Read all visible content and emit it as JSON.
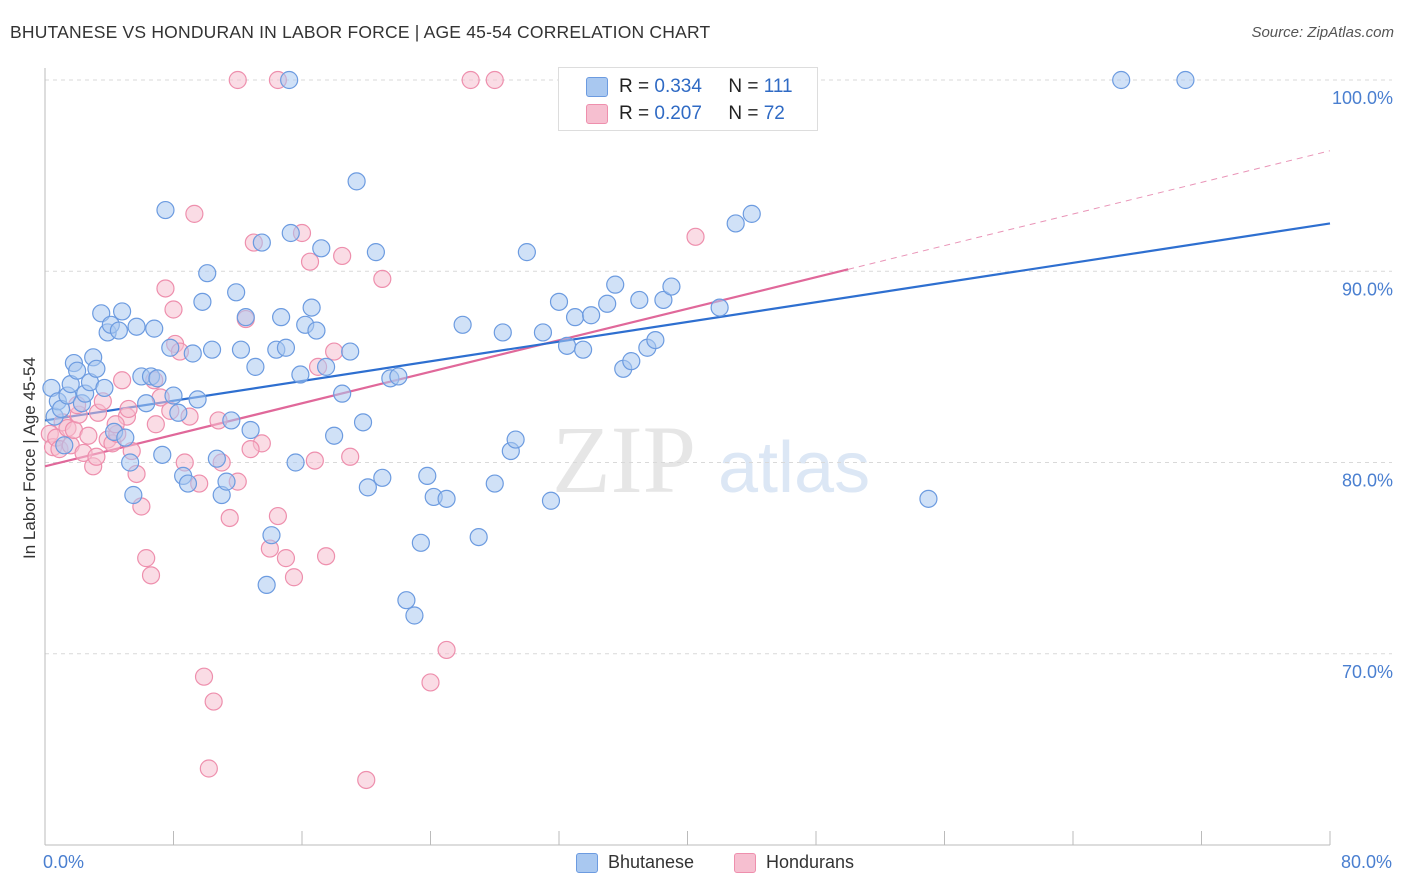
{
  "title": "BHUTANESE VS HONDURAN IN LABOR FORCE | AGE 45-54 CORRELATION CHART",
  "source": "Source: ZipAtlas.com",
  "watermark": {
    "zip": "ZIP",
    "atlas": "atlas"
  },
  "stats": {
    "rows": [
      {
        "r_label": "R =",
        "r_value": "0.334",
        "n_label": "N =",
        "n_value": "111"
      },
      {
        "r_label": "R =",
        "r_value": "0.207",
        "n_label": "N =",
        "n_value": "72"
      }
    ]
  },
  "legend": {
    "items": [
      {
        "label": "Bhutanese"
      },
      {
        "label": "Hondurans"
      }
    ]
  },
  "colors": {
    "bhutanese_fill": "#a9c8f0",
    "bhutanese_stroke": "#6c9be0",
    "bhutanese_line": "#2e6fd0",
    "hondurans_fill": "#f6bfd0",
    "hondurans_stroke": "#ee8fad",
    "hondurans_line": "#e0689a",
    "tick_label": "#4a7fd0",
    "grid": "#d9d9d9"
  },
  "chart_data": {
    "type": "scatter",
    "title": "BHUTANESE VS HONDURAN IN LABOR FORCE | AGE 45-54 CORRELATION CHART",
    "xlabel": "",
    "ylabel": "In Labor Force | Age 45-54",
    "xlim": [
      0,
      80
    ],
    "ylim": [
      60,
      100
    ],
    "x_tick_labels": [
      "0.0%",
      "80.0%"
    ],
    "y_ticks": [
      70,
      80,
      90,
      100
    ],
    "y_tick_labels": [
      "70.0%",
      "80.0%",
      "90.0%",
      "100.0%"
    ],
    "grid": "horizontal dashed",
    "legend_position": "bottom-center",
    "series": [
      {
        "name": "Bhutanese",
        "R": 0.334,
        "N": 111,
        "trend": {
          "x": [
            0,
            80
          ],
          "y": [
            82.2,
            92.5
          ],
          "style": "solid"
        },
        "points": [
          [
            0.4,
            83.9
          ],
          [
            0.6,
            82.4
          ],
          [
            0.8,
            83.2
          ],
          [
            1.0,
            82.8
          ],
          [
            1.2,
            80.9
          ],
          [
            1.4,
            83.5
          ],
          [
            1.6,
            84.1
          ],
          [
            1.8,
            85.2
          ],
          [
            2.0,
            84.8
          ],
          [
            2.3,
            83.1
          ],
          [
            2.5,
            83.6
          ],
          [
            2.8,
            84.2
          ],
          [
            3.0,
            85.5
          ],
          [
            3.2,
            84.9
          ],
          [
            3.5,
            87.8
          ],
          [
            3.7,
            83.9
          ],
          [
            3.9,
            86.8
          ],
          [
            4.1,
            87.2
          ],
          [
            4.3,
            81.6
          ],
          [
            4.6,
            86.9
          ],
          [
            4.8,
            87.9
          ],
          [
            5.0,
            81.3
          ],
          [
            5.3,
            80.0
          ],
          [
            5.5,
            78.3
          ],
          [
            5.7,
            87.1
          ],
          [
            6.0,
            84.5
          ],
          [
            6.3,
            83.1
          ],
          [
            6.6,
            84.5
          ],
          [
            6.8,
            87.0
          ],
          [
            7.0,
            84.4
          ],
          [
            7.3,
            80.4
          ],
          [
            7.5,
            93.2
          ],
          [
            7.8,
            86.0
          ],
          [
            8.0,
            83.5
          ],
          [
            8.3,
            82.6
          ],
          [
            8.6,
            79.3
          ],
          [
            8.9,
            78.9
          ],
          [
            9.2,
            85.7
          ],
          [
            9.5,
            83.3
          ],
          [
            9.8,
            88.4
          ],
          [
            10.1,
            89.9
          ],
          [
            10.4,
            85.9
          ],
          [
            10.7,
            80.2
          ],
          [
            11.0,
            78.3
          ],
          [
            11.3,
            79.0
          ],
          [
            11.6,
            82.2
          ],
          [
            11.9,
            88.9
          ],
          [
            12.2,
            85.9
          ],
          [
            12.5,
            87.6
          ],
          [
            12.8,
            81.7
          ],
          [
            13.1,
            85.0
          ],
          [
            13.5,
            91.5
          ],
          [
            13.8,
            73.6
          ],
          [
            14.1,
            76.2
          ],
          [
            14.4,
            85.9
          ],
          [
            14.7,
            87.6
          ],
          [
            15.0,
            86.0
          ],
          [
            15.3,
            92.0
          ],
          [
            15.6,
            80.0
          ],
          [
            15.9,
            84.6
          ],
          [
            16.2,
            87.2
          ],
          [
            16.6,
            88.1
          ],
          [
            16.9,
            86.9
          ],
          [
            17.2,
            91.2
          ],
          [
            17.5,
            85.0
          ],
          [
            18.0,
            81.4
          ],
          [
            18.5,
            83.6
          ],
          [
            19.0,
            85.8
          ],
          [
            19.4,
            94.7
          ],
          [
            19.8,
            82.1
          ],
          [
            20.1,
            78.7
          ],
          [
            20.6,
            91.0
          ],
          [
            21.0,
            79.2
          ],
          [
            21.5,
            84.4
          ],
          [
            22.0,
            84.5
          ],
          [
            22.5,
            72.8
          ],
          [
            23.0,
            72.0
          ],
          [
            23.4,
            75.8
          ],
          [
            23.8,
            79.3
          ],
          [
            24.2,
            78.2
          ],
          [
            25.0,
            78.1
          ],
          [
            26.0,
            87.2
          ],
          [
            27.0,
            76.1
          ],
          [
            28.0,
            78.9
          ],
          [
            28.5,
            86.8
          ],
          [
            29.0,
            80.6
          ],
          [
            29.3,
            81.2
          ],
          [
            30.0,
            91.0
          ],
          [
            31.0,
            86.8
          ],
          [
            31.5,
            78.0
          ],
          [
            32.0,
            88.4
          ],
          [
            32.5,
            86.1
          ],
          [
            33.0,
            87.6
          ],
          [
            33.5,
            85.9
          ],
          [
            34.0,
            87.7
          ],
          [
            35.0,
            88.3
          ],
          [
            35.5,
            89.3
          ],
          [
            36.0,
            84.9
          ],
          [
            36.5,
            85.3
          ],
          [
            37.0,
            88.5
          ],
          [
            37.5,
            86.0
          ],
          [
            38.0,
            86.4
          ],
          [
            38.5,
            88.5
          ],
          [
            39.0,
            89.2
          ],
          [
            42.0,
            88.1
          ],
          [
            43.0,
            92.5
          ],
          [
            44.0,
            93.0
          ],
          [
            55.0,
            78.1
          ],
          [
            67.0,
            100.0
          ],
          [
            71.0,
            100.0
          ],
          [
            15.2,
            100.0
          ]
        ]
      },
      {
        "name": "Hondurans",
        "R": 0.207,
        "N": 72,
        "trend": {
          "x": [
            0,
            50
          ],
          "y": [
            79.8,
            90.1
          ],
          "style": "solid",
          "extension": {
            "x": [
              50,
              80
            ],
            "y": [
              90.1,
              96.3
            ],
            "style": "dashed"
          }
        },
        "points": [
          [
            0.3,
            81.5
          ],
          [
            0.5,
            80.8
          ],
          [
            0.7,
            81.3
          ],
          [
            0.9,
            80.7
          ],
          [
            1.1,
            82.1
          ],
          [
            1.4,
            81.8
          ],
          [
            1.6,
            80.9
          ],
          [
            1.8,
            81.7
          ],
          [
            2.1,
            82.5
          ],
          [
            2.4,
            80.5
          ],
          [
            2.7,
            81.4
          ],
          [
            3.0,
            79.8
          ],
          [
            3.3,
            82.6
          ],
          [
            3.6,
            83.2
          ],
          [
            3.9,
            81.2
          ],
          [
            4.2,
            81.0
          ],
          [
            4.5,
            81.5
          ],
          [
            4.8,
            84.3
          ],
          [
            5.1,
            82.4
          ],
          [
            5.4,
            80.6
          ],
          [
            5.7,
            79.4
          ],
          [
            6.0,
            77.7
          ],
          [
            6.3,
            75.0
          ],
          [
            6.6,
            74.1
          ],
          [
            6.9,
            82.0
          ],
          [
            7.2,
            83.4
          ],
          [
            7.5,
            89.1
          ],
          [
            7.8,
            82.7
          ],
          [
            8.1,
            86.2
          ],
          [
            8.4,
            85.8
          ],
          [
            8.7,
            80.0
          ],
          [
            9.0,
            82.4
          ],
          [
            9.3,
            93.0
          ],
          [
            9.6,
            78.9
          ],
          [
            9.9,
            68.8
          ],
          [
            10.2,
            64.0
          ],
          [
            10.5,
            67.5
          ],
          [
            11.0,
            80.0
          ],
          [
            11.5,
            77.1
          ],
          [
            12.0,
            79.0
          ],
          [
            12.5,
            87.5
          ],
          [
            13.0,
            91.5
          ],
          [
            13.5,
            81.0
          ],
          [
            14.0,
            75.5
          ],
          [
            14.5,
            77.2
          ],
          [
            15.0,
            75.0
          ],
          [
            15.5,
            74.0
          ],
          [
            16.0,
            92.0
          ],
          [
            16.5,
            90.5
          ],
          [
            17.0,
            85.0
          ],
          [
            17.5,
            75.1
          ],
          [
            18.0,
            85.8
          ],
          [
            18.5,
            90.8
          ],
          [
            19.0,
            80.3
          ],
          [
            20.0,
            63.4
          ],
          [
            21.0,
            89.6
          ],
          [
            24.0,
            68.5
          ],
          [
            25.0,
            70.2
          ],
          [
            26.5,
            100.0
          ],
          [
            28.0,
            100.0
          ],
          [
            12.0,
            100.0
          ],
          [
            14.5,
            100.0
          ],
          [
            40.5,
            91.8
          ],
          [
            8.0,
            88.0
          ],
          [
            3.2,
            80.3
          ],
          [
            2.0,
            83.0
          ],
          [
            6.8,
            84.3
          ],
          [
            4.4,
            82.0
          ],
          [
            10.8,
            82.2
          ],
          [
            12.8,
            80.7
          ],
          [
            16.8,
            80.1
          ],
          [
            5.2,
            82.8
          ]
        ]
      }
    ]
  }
}
